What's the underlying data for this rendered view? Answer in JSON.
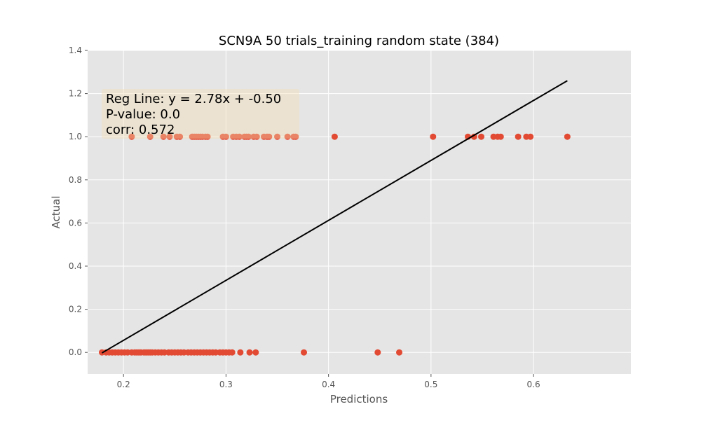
{
  "chart_data": {
    "type": "scatter",
    "title": "SCN9A 50 trials_training random state (384)",
    "xlabel": "Predictions",
    "ylabel": "Actual",
    "xlim": [
      0.165,
      0.695
    ],
    "ylim": [
      -0.1,
      1.4
    ],
    "x_ticks": [
      0.2,
      0.3,
      0.4,
      0.5,
      0.6
    ],
    "x_tick_labels": [
      "0.2",
      "0.3",
      "0.4",
      "0.5",
      "0.6"
    ],
    "y_ticks": [
      0.0,
      0.2,
      0.4,
      0.6,
      0.8,
      1.0,
      1.2,
      1.4
    ],
    "y_tick_labels": [
      "0.0",
      "0.2",
      "0.4",
      "0.6",
      "0.8",
      "1.0",
      "1.2",
      "1.4"
    ],
    "grid": true,
    "style": "ggplot",
    "annotation": {
      "lines": [
        "Reg Line: y = 2.78x + -0.50",
        "P-value: 0.0",
        "corr: 0.572"
      ],
      "position": "top-left"
    },
    "regression": {
      "slope": 2.78,
      "intercept": -0.5,
      "x_range": [
        0.179,
        0.633
      ],
      "color": "#000000"
    },
    "points_color": "#E24A33",
    "series": [
      {
        "y": 1,
        "x": [
          0.208,
          0.226,
          0.239,
          0.245,
          0.252,
          0.255,
          0.267,
          0.269,
          0.271,
          0.273,
          0.275,
          0.277,
          0.28,
          0.282,
          0.297,
          0.3,
          0.307,
          0.31,
          0.313,
          0.318,
          0.32,
          0.322,
          0.327,
          0.33,
          0.337,
          0.34,
          0.342,
          0.35,
          0.36,
          0.366,
          0.368,
          0.406,
          0.502,
          0.536,
          0.542,
          0.549,
          0.561,
          0.565,
          0.568,
          0.585,
          0.593,
          0.597,
          0.633
        ]
      },
      {
        "y": 0,
        "x": [
          0.179,
          0.183,
          0.186,
          0.189,
          0.192,
          0.195,
          0.198,
          0.201,
          0.204,
          0.208,
          0.211,
          0.213,
          0.215,
          0.217,
          0.22,
          0.222,
          0.224,
          0.226,
          0.228,
          0.231,
          0.234,
          0.237,
          0.24,
          0.244,
          0.247,
          0.25,
          0.253,
          0.256,
          0.259,
          0.263,
          0.266,
          0.269,
          0.272,
          0.275,
          0.278,
          0.281,
          0.284,
          0.287,
          0.29,
          0.294,
          0.297,
          0.3,
          0.303,
          0.306,
          0.314,
          0.323,
          0.329,
          0.376,
          0.448,
          0.469
        ]
      }
    ]
  }
}
